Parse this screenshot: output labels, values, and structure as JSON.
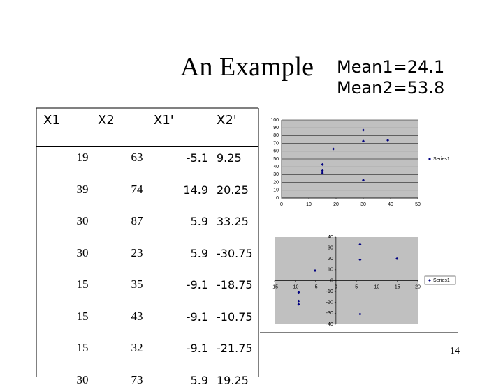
{
  "header": {
    "title": "An Example",
    "means": [
      "Mean1=24.1",
      "Mean2=53.8"
    ]
  },
  "table": {
    "columns": [
      "X1",
      "X2",
      "X1'",
      "X2'"
    ],
    "rows": [
      [
        19,
        63,
        -5.1,
        9.25
      ],
      [
        39,
        74,
        14.9,
        20.25
      ],
      [
        30,
        87,
        5.9,
        33.25
      ],
      [
        30,
        23,
        5.9,
        -30.75
      ],
      [
        15,
        35,
        -9.1,
        -18.75
      ],
      [
        15,
        43,
        -9.1,
        -10.75
      ],
      [
        15,
        32,
        -9.1,
        -21.75
      ],
      [
        30,
        73,
        5.9,
        19.25
      ]
    ]
  },
  "chart_data": [
    {
      "type": "scatter",
      "xlim": [
        0,
        50
      ],
      "ylim": [
        0,
        100
      ],
      "xticks": [
        0,
        10,
        20,
        30,
        40,
        50
      ],
      "yticks": [
        0,
        10,
        20,
        30,
        40,
        50,
        60,
        70,
        80,
        90,
        100
      ],
      "grid": true,
      "axes_cross_zero": false,
      "series": [
        {
          "name": "Series1",
          "color": "#000080",
          "x": [
            19,
            39,
            30,
            30,
            15,
            15,
            15,
            30
          ],
          "values": [
            63,
            74,
            87,
            23,
            35,
            43,
            32,
            73
          ]
        }
      ]
    },
    {
      "type": "scatter",
      "xlim": [
        -15,
        20
      ],
      "ylim": [
        -40,
        40
      ],
      "xticks": [
        -15,
        -10,
        -5,
        0,
        5,
        10,
        15,
        20
      ],
      "yticks": [
        -40,
        -30,
        -20,
        -10,
        0,
        10,
        20,
        30,
        40
      ],
      "grid": false,
      "axes_cross_zero": true,
      "series": [
        {
          "name": "Series1",
          "color": "#000080",
          "x": [
            -5.1,
            14.9,
            5.9,
            5.9,
            -9.1,
            -9.1,
            -9.1,
            5.9
          ],
          "values": [
            9.25,
            20.25,
            33.25,
            -30.75,
            -18.75,
            -10.75,
            -21.75,
            19.25
          ]
        }
      ]
    }
  ],
  "page_number": "14"
}
